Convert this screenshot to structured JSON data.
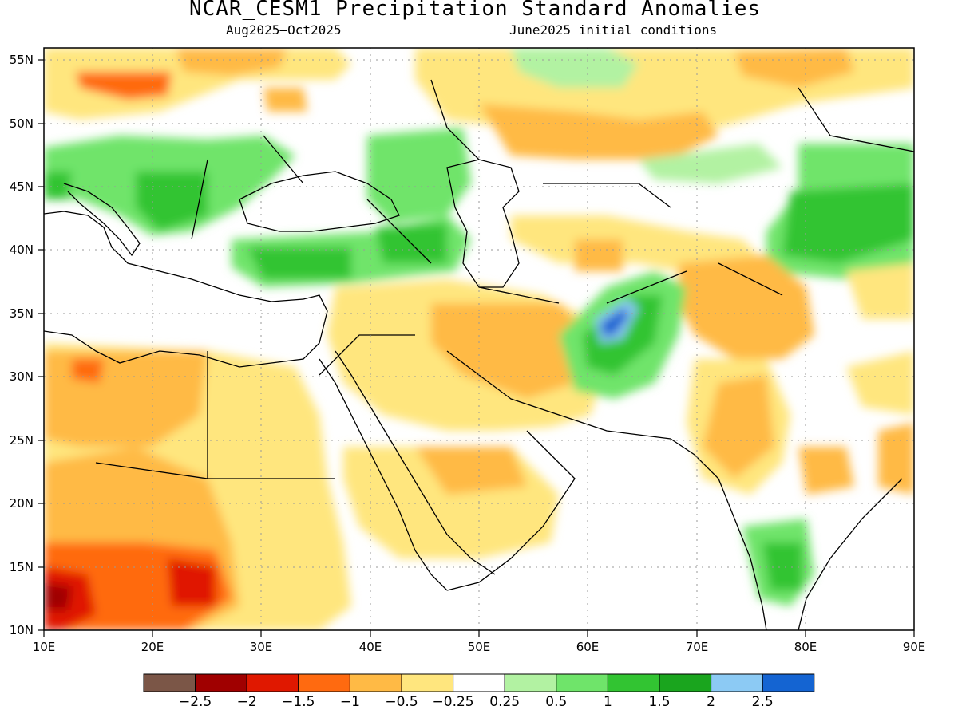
{
  "title": "NCAR_CESM1 Precipitation Standard Anomalies",
  "subtitle_left": "Aug2025–Oct2025",
  "subtitle_right": "June2025 initial conditions",
  "map": {
    "lon_range": [
      10,
      90
    ],
    "lat_range": [
      10,
      56
    ],
    "lon_ticks": [
      "10E",
      "20E",
      "30E",
      "40E",
      "50E",
      "60E",
      "70E",
      "80E",
      "90E"
    ],
    "lat_ticks": [
      "55N",
      "50N",
      "45N",
      "40N",
      "35N",
      "30N",
      "25N",
      "20N",
      "15N",
      "10N"
    ]
  },
  "legend": {
    "colors": [
      "#7b5647",
      "#a00000",
      "#e01800",
      "#ff6a10",
      "#ffba45",
      "#ffe67e",
      "#ffffff",
      "#b2f2a2",
      "#6fe46a",
      "#32c432",
      "#1aa51e",
      "#8ccaf4",
      "#1464d2"
    ],
    "labels": [
      "−2.5",
      "−2",
      "−1.5",
      "−1",
      "−0.5",
      "−0.25",
      "0.25",
      "0.5",
      "1",
      "1.5",
      "2",
      "2.5"
    ]
  }
}
